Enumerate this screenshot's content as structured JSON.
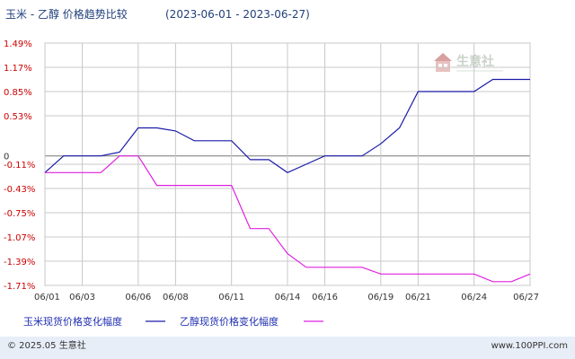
{
  "chart_data": {
    "type": "line",
    "title": "玉米 - 乙醇 价格趋势比较",
    "date_range": "(2023-06-01 - 2023-06-27)",
    "y_ticks": [
      {
        "value": 1.49,
        "label": "1.49%"
      },
      {
        "value": 1.17,
        "label": "1.17%"
      },
      {
        "value": 0.85,
        "label": "0.85%"
      },
      {
        "value": 0.53,
        "label": "0.53%"
      },
      {
        "value": 0,
        "label": "0"
      },
      {
        "value": -0.11,
        "label": "-0.11%"
      },
      {
        "value": -0.43,
        "label": "-0.43%"
      },
      {
        "value": -0.75,
        "label": "-0.75%"
      },
      {
        "value": -1.07,
        "label": "-1.07%"
      },
      {
        "value": -1.39,
        "label": "-1.39%"
      },
      {
        "value": -1.71,
        "label": "-1.71%"
      }
    ],
    "ylim": [
      -1.71,
      1.49
    ],
    "x_ticks": [
      {
        "day": 1,
        "label": "06/01"
      },
      {
        "day": 3,
        "label": "06/03"
      },
      {
        "day": 6,
        "label": "06/06"
      },
      {
        "day": 8,
        "label": "06/08"
      },
      {
        "day": 11,
        "label": "06/11"
      },
      {
        "day": 14,
        "label": "06/14"
      },
      {
        "day": 16,
        "label": "06/16"
      },
      {
        "day": 19,
        "label": "06/19"
      },
      {
        "day": 21,
        "label": "06/21"
      },
      {
        "day": 24,
        "label": "06/24"
      },
      {
        "day": 27,
        "label": "06/27"
      }
    ],
    "xlim": [
      1,
      27
    ],
    "series": [
      {
        "name": "玉米现货价格变化幅度",
        "color": "#1a1aa8",
        "points": [
          [
            1,
            -0.22
          ],
          [
            2,
            0.0
          ],
          [
            3,
            0.0
          ],
          [
            4,
            0.0
          ],
          [
            5,
            0.05
          ],
          [
            6,
            0.37
          ],
          [
            7,
            0.37
          ],
          [
            8,
            0.33
          ],
          [
            9,
            0.2
          ],
          [
            10,
            0.2
          ],
          [
            11,
            0.2
          ],
          [
            12,
            -0.05
          ],
          [
            13,
            -0.05
          ],
          [
            14,
            -0.22
          ],
          [
            15,
            -0.11
          ],
          [
            16,
            0.0
          ],
          [
            17,
            0.0
          ],
          [
            18,
            0.0
          ],
          [
            19,
            0.16
          ],
          [
            20,
            0.37
          ],
          [
            21,
            0.85
          ],
          [
            22,
            0.85
          ],
          [
            23,
            0.85
          ],
          [
            24,
            0.85
          ],
          [
            25,
            1.01
          ],
          [
            26,
            1.01
          ],
          [
            27,
            1.01
          ]
        ]
      },
      {
        "name": "乙醇现货价格变化幅度",
        "color": "#e020e0",
        "points": [
          [
            1,
            -0.22
          ],
          [
            2,
            -0.22
          ],
          [
            3,
            -0.22
          ],
          [
            4,
            -0.22
          ],
          [
            5,
            0.0
          ],
          [
            6,
            0.0
          ],
          [
            7,
            -0.39
          ],
          [
            8,
            -0.39
          ],
          [
            9,
            -0.39
          ],
          [
            10,
            -0.39
          ],
          [
            11,
            -0.39
          ],
          [
            12,
            -0.96
          ],
          [
            13,
            -0.96
          ],
          [
            14,
            -1.29
          ],
          [
            15,
            -1.47
          ],
          [
            16,
            -1.47
          ],
          [
            17,
            -1.47
          ],
          [
            18,
            -1.47
          ],
          [
            19,
            -1.56
          ],
          [
            20,
            -1.56
          ],
          [
            21,
            -1.56
          ],
          [
            22,
            -1.56
          ],
          [
            23,
            -1.56
          ],
          [
            24,
            -1.56
          ],
          [
            25,
            -1.66
          ],
          [
            26,
            -1.66
          ],
          [
            27,
            -1.56
          ]
        ]
      }
    ],
    "grid": true,
    "legend_position": "bottom"
  },
  "footer": {
    "copyright": "© 2025.05 生意社",
    "site": "www.100PPI.com"
  },
  "watermark": {
    "text": "生意社"
  },
  "colors": {
    "corn": "#1a1aa8",
    "ethanol": "#e020e0",
    "axis_label": "#cc0000",
    "grid": "#c8c8c8"
  }
}
